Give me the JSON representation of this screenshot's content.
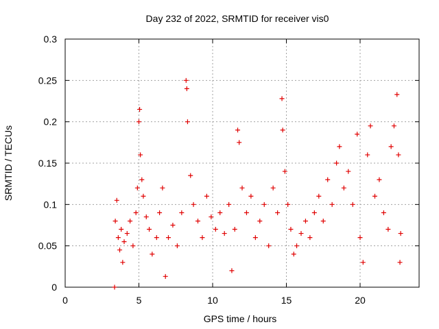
{
  "chart_data": {
    "type": "scatter",
    "title": "Day 232 of 2022, SRMTID for receiver vis0",
    "xlabel": "GPS time / hours",
    "ylabel": "SRMTID / TECUs",
    "xlim": [
      0,
      24
    ],
    "ylim": [
      0,
      0.3
    ],
    "xticks": [
      0,
      5,
      10,
      15,
      20
    ],
    "yticks": [
      0,
      0.05,
      0.1,
      0.15,
      0.2,
      0.25,
      0.3
    ],
    "grid": true,
    "marker": "+",
    "color": "#e00000",
    "series": [
      {
        "name": "vis0",
        "points": [
          [
            3.35,
            0.0
          ],
          [
            3.4,
            0.08
          ],
          [
            3.5,
            0.105
          ],
          [
            3.6,
            0.06
          ],
          [
            3.7,
            0.045
          ],
          [
            3.8,
            0.07
          ],
          [
            3.9,
            0.03
          ],
          [
            4.0,
            0.055
          ],
          [
            4.2,
            0.065
          ],
          [
            4.4,
            0.08
          ],
          [
            4.6,
            0.05
          ],
          [
            4.8,
            0.09
          ],
          [
            4.9,
            0.12
          ],
          [
            5.0,
            0.2
          ],
          [
            5.05,
            0.215
          ],
          [
            5.1,
            0.16
          ],
          [
            5.2,
            0.13
          ],
          [
            5.3,
            0.11
          ],
          [
            5.5,
            0.085
          ],
          [
            5.7,
            0.07
          ],
          [
            5.9,
            0.04
          ],
          [
            6.2,
            0.06
          ],
          [
            6.4,
            0.09
          ],
          [
            6.6,
            0.12
          ],
          [
            6.8,
            0.013
          ],
          [
            7.0,
            0.06
          ],
          [
            7.3,
            0.075
          ],
          [
            7.6,
            0.05
          ],
          [
            7.9,
            0.09
          ],
          [
            8.2,
            0.25
          ],
          [
            8.25,
            0.24
          ],
          [
            8.3,
            0.2
          ],
          [
            8.5,
            0.135
          ],
          [
            8.7,
            0.1
          ],
          [
            9.0,
            0.08
          ],
          [
            9.3,
            0.06
          ],
          [
            9.6,
            0.11
          ],
          [
            9.9,
            0.085
          ],
          [
            10.2,
            0.07
          ],
          [
            10.5,
            0.09
          ],
          [
            10.8,
            0.065
          ],
          [
            11.1,
            0.1
          ],
          [
            11.3,
            0.02
          ],
          [
            11.5,
            0.07
          ],
          [
            11.7,
            0.19
          ],
          [
            11.8,
            0.175
          ],
          [
            12.0,
            0.12
          ],
          [
            12.3,
            0.09
          ],
          [
            12.6,
            0.11
          ],
          [
            12.9,
            0.06
          ],
          [
            13.2,
            0.08
          ],
          [
            13.5,
            0.1
          ],
          [
            13.8,
            0.05
          ],
          [
            14.1,
            0.12
          ],
          [
            14.4,
            0.09
          ],
          [
            14.7,
            0.228
          ],
          [
            14.75,
            0.19
          ],
          [
            14.9,
            0.14
          ],
          [
            15.1,
            0.1
          ],
          [
            15.3,
            0.07
          ],
          [
            15.5,
            0.04
          ],
          [
            15.7,
            0.05
          ],
          [
            16.0,
            0.065
          ],
          [
            16.3,
            0.08
          ],
          [
            16.6,
            0.06
          ],
          [
            16.9,
            0.09
          ],
          [
            17.2,
            0.11
          ],
          [
            17.5,
            0.08
          ],
          [
            17.8,
            0.13
          ],
          [
            18.1,
            0.1
          ],
          [
            18.4,
            0.15
          ],
          [
            18.6,
            0.17
          ],
          [
            18.9,
            0.12
          ],
          [
            19.2,
            0.14
          ],
          [
            19.5,
            0.1
          ],
          [
            19.8,
            0.185
          ],
          [
            20.0,
            0.06
          ],
          [
            20.2,
            0.03
          ],
          [
            20.5,
            0.16
          ],
          [
            20.7,
            0.195
          ],
          [
            21.0,
            0.11
          ],
          [
            21.3,
            0.13
          ],
          [
            21.6,
            0.09
          ],
          [
            21.9,
            0.07
          ],
          [
            22.1,
            0.17
          ],
          [
            22.3,
            0.195
          ],
          [
            22.5,
            0.233
          ],
          [
            22.6,
            0.16
          ],
          [
            22.7,
            0.03
          ],
          [
            22.75,
            0.065
          ]
        ]
      }
    ]
  }
}
